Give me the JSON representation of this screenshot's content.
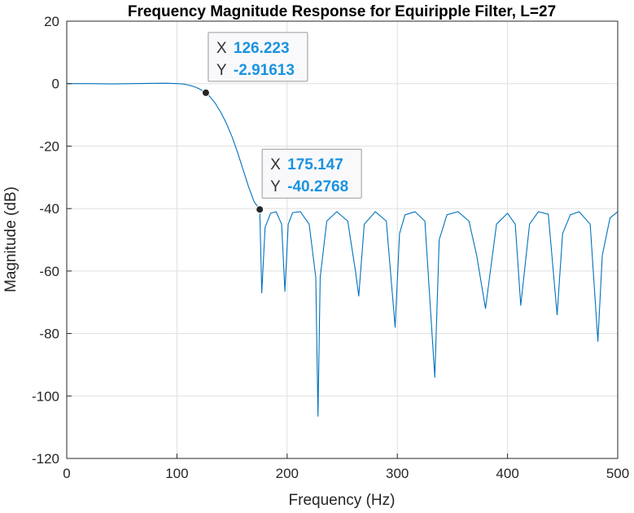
{
  "chart_data": {
    "type": "line",
    "title": "Frequency Magnitude Response for Equiripple Filter, L=27",
    "xlabel": "Frequency (Hz)",
    "ylabel": "Magnitude (dB)",
    "xlim": [
      0,
      500
    ],
    "ylim": [
      -120,
      20
    ],
    "xticks": [
      0,
      100,
      200,
      300,
      400,
      500
    ],
    "xtick_labels": [
      "0",
      "100",
      "200",
      "300",
      "400",
      "500"
    ],
    "yticks": [
      -120,
      -100,
      -80,
      -60,
      -40,
      -20,
      0,
      20
    ],
    "ytick_labels": [
      "-120",
      "-100",
      "-80",
      "-60",
      "-40",
      "-20",
      "0",
      "20"
    ],
    "grid": true,
    "series_color": "#0072bd",
    "series": [
      {
        "x": [
          0,
          20,
          40,
          60,
          80,
          90,
          100,
          105,
          110,
          115,
          120,
          126.223,
          130,
          135,
          140,
          145,
          150,
          155,
          160,
          165,
          170,
          175.147,
          177,
          180,
          185,
          190,
          195,
          198,
          201,
          205,
          212,
          220,
          226,
          228,
          230,
          236,
          245,
          255,
          262,
          265,
          270,
          280,
          290,
          298,
          302,
          307,
          316,
          325,
          334,
          338,
          345,
          355,
          365,
          372,
          380,
          390,
          400,
          407,
          412,
          420,
          428,
          437,
          445,
          450,
          457,
          465,
          475,
          482,
          486,
          493,
          500
        ],
        "y": [
          0,
          0,
          -0.1,
          0,
          0.1,
          0.15,
          0,
          -0.1,
          -0.4,
          -0.9,
          -1.6,
          -2.91613,
          -4.2,
          -6.4,
          -9.3,
          -12.8,
          -17.0,
          -22.0,
          -27.5,
          -33.0,
          -37.8,
          -40.2768,
          -67,
          -46,
          -41.5,
          -41.0,
          -45,
          -66.5,
          -45,
          -41.3,
          -41.0,
          -45,
          -62,
          -106.5,
          -62,
          -44,
          -41.0,
          -44,
          -60,
          -68,
          -45,
          -41.0,
          -44,
          -78,
          -48,
          -42,
          -41.0,
          -44,
          -94,
          -50,
          -42,
          -41.0,
          -44,
          -55,
          -72,
          -45,
          -41.5,
          -45,
          -71,
          -45,
          -41.0,
          -41.8,
          -74,
          -48,
          -42,
          -41.0,
          -45,
          -82.5,
          -55,
          -43,
          -41.0
        ]
      }
    ],
    "datatips": [
      {
        "x_key": "X",
        "x_value": "126.223",
        "y_key": "Y",
        "y_value": "-2.91613",
        "x": 126.223,
        "y": -2.91613
      },
      {
        "x_key": "X",
        "x_value": "175.147",
        "y_key": "Y",
        "y_value": "-40.2768",
        "x": 175.147,
        "y": -40.2768
      }
    ]
  }
}
